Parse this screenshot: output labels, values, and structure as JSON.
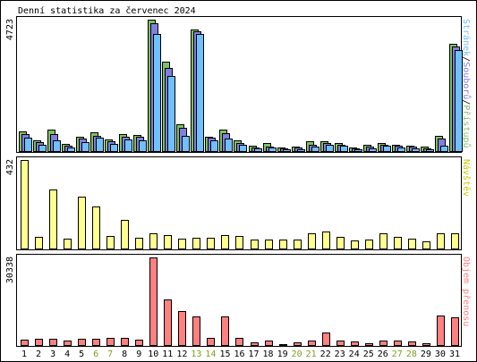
{
  "title": "Denní statistika za červenec 2024",
  "colors": {
    "background": "#ffffff",
    "frame": "#000000",
    "hits": "#80c060",
    "files": "#8080e0",
    "pages": "#70c0ff",
    "visits": "#ffff90",
    "kbytes": "#ff8080",
    "weekend_label": "#80a020"
  },
  "chart_data": [
    {
      "type": "bar",
      "name": "top",
      "ymax_label": "4723",
      "legend_label": "Stránek/Souborů/Přístupů",
      "legend_parts": [
        {
          "text": "Stránek",
          "color": "#70c0ff"
        },
        {
          "text": "/",
          "color": "#000000"
        },
        {
          "text": "Souborů",
          "color": "#8080e0"
        },
        {
          "text": "/",
          "color": "#000000"
        },
        {
          "text": "Přístupů",
          "color": "#80c060"
        }
      ],
      "ylim": [
        0,
        4723
      ],
      "categories": [
        "1",
        "2",
        "3",
        "4",
        "5",
        "6",
        "7",
        "8",
        "9",
        "10",
        "11",
        "12",
        "13",
        "14",
        "15",
        "16",
        "17",
        "18",
        "19",
        "20",
        "21",
        "22",
        "23",
        "24",
        "25",
        "26",
        "27",
        "28",
        "29",
        "30",
        "31"
      ],
      "series": [
        {
          "values": [
            720,
            390,
            760,
            270,
            520,
            680,
            420,
            600,
            570,
            4723,
            3200,
            970,
            4370,
            520,
            760,
            370,
            190,
            280,
            140,
            170,
            340,
            340,
            280,
            140,
            210,
            280,
            230,
            200,
            160,
            540,
            3850
          ]
        },
        {
          "values": [
            620,
            330,
            620,
            200,
            440,
            560,
            340,
            520,
            500,
            4600,
            3000,
            850,
            4300,
            470,
            640,
            280,
            140,
            170,
            100,
            120,
            240,
            280,
            230,
            100,
            150,
            230,
            180,
            150,
            110,
            460,
            3750
          ]
        },
        {
          "values": [
            470,
            240,
            380,
            140,
            330,
            470,
            250,
            420,
            400,
            4200,
            2700,
            560,
            4200,
            390,
            440,
            220,
            100,
            120,
            60,
            80,
            160,
            230,
            180,
            60,
            100,
            180,
            130,
            100,
            80,
            180,
            3620
          ]
        }
      ]
    },
    {
      "type": "bar",
      "name": "middle",
      "ymax_label": "432",
      "legend_label": "Návštěv",
      "ylim": [
        0,
        432
      ],
      "categories": [
        "1",
        "2",
        "3",
        "4",
        "5",
        "6",
        "7",
        "8",
        "9",
        "10",
        "11",
        "12",
        "13",
        "14",
        "15",
        "16",
        "17",
        "18",
        "19",
        "20",
        "21",
        "22",
        "23",
        "24",
        "25",
        "26",
        "27",
        "28",
        "29",
        "30",
        "31"
      ],
      "series": [
        {
          "values": [
            432,
            58,
            286,
            48,
            254,
            207,
            60,
            140,
            52,
            75,
            65,
            50,
            52,
            52,
            65,
            62,
            42,
            42,
            42,
            42,
            72,
            82,
            58,
            40,
            42,
            72,
            55,
            50,
            37,
            75,
            75
          ]
        }
      ]
    },
    {
      "type": "bar",
      "name": "bottom",
      "ymax_label": "30338",
      "legend_label": "Objem přenosu",
      "ylim": [
        0,
        30338
      ],
      "categories": [
        "1",
        "2",
        "3",
        "4",
        "5",
        "6",
        "7",
        "8",
        "9",
        "10",
        "11",
        "12",
        "13",
        "14",
        "15",
        "16",
        "17",
        "18",
        "19",
        "20",
        "21",
        "22",
        "23",
        "24",
        "25",
        "26",
        "27",
        "28",
        "29",
        "30",
        "31"
      ],
      "series": [
        {
          "values": [
            1800,
            2150,
            2100,
            1600,
            2100,
            2050,
            2450,
            2550,
            2000,
            30338,
            15800,
            11900,
            10000,
            2600,
            10000,
            2600,
            900,
            1600,
            400,
            800,
            1400,
            4400,
            1500,
            1100,
            500,
            1500,
            1600,
            1300,
            700,
            10300,
            9700
          ]
        }
      ]
    }
  ],
  "x_labels": [
    "1",
    "2",
    "3",
    "4",
    "5",
    "6",
    "7",
    "8",
    "9",
    "10",
    "11",
    "12",
    "13",
    "14",
    "15",
    "16",
    "17",
    "18",
    "19",
    "20",
    "21",
    "22",
    "23",
    "24",
    "25",
    "26",
    "27",
    "28",
    "29",
    "30",
    "31"
  ],
  "weekend_days": [
    "6",
    "7",
    "13",
    "14",
    "20",
    "21",
    "27",
    "28"
  ]
}
